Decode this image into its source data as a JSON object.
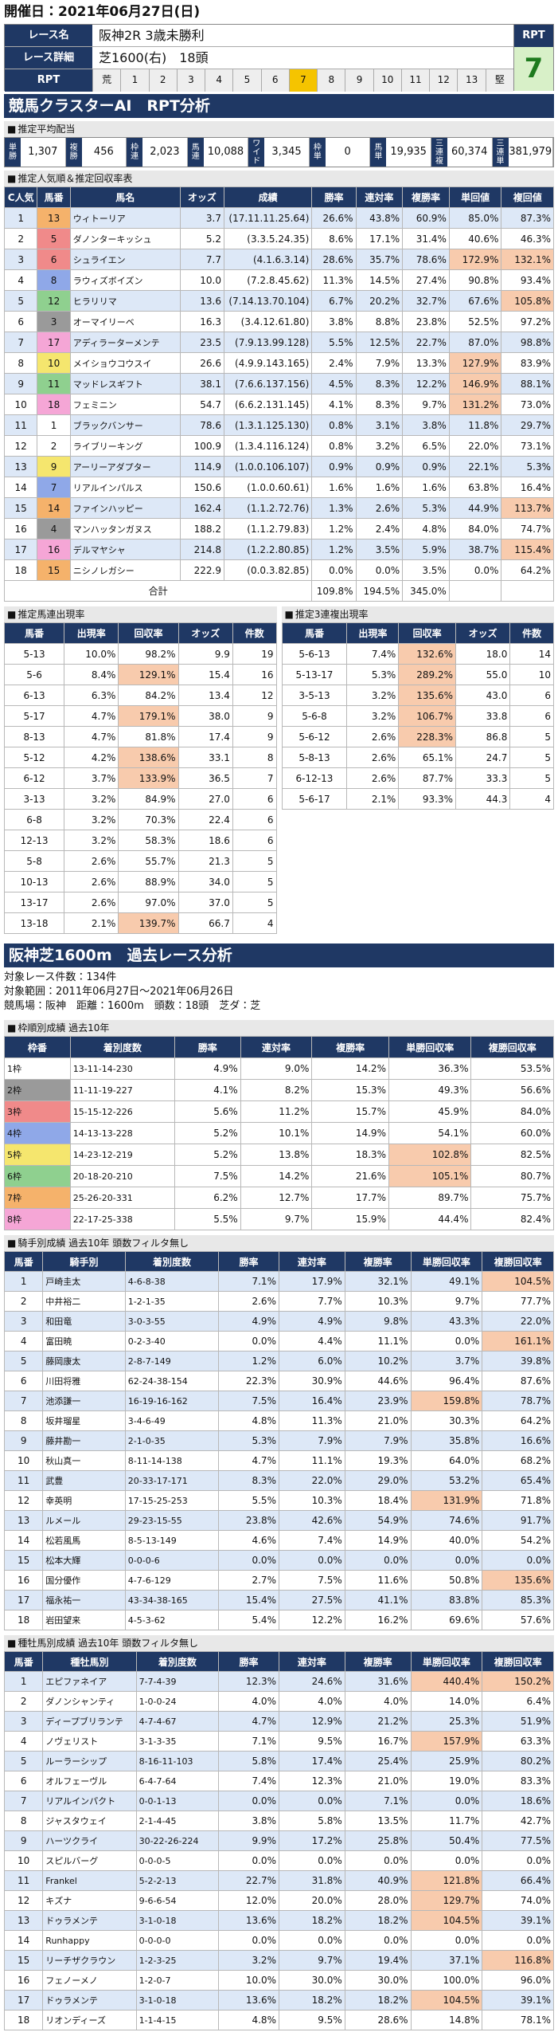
{
  "header": {
    "date": "開催日：2021年06月27日(日)"
  },
  "race": {
    "name_label": "レース名",
    "name": "阪神2R 3歳未勝利",
    "detail_label": "レース詳細",
    "detail": "芝1600(右)　18頭",
    "rpt_label": "RPT",
    "rpt_scale": [
      "荒",
      "1",
      "2",
      "3",
      "4",
      "5",
      "6",
      "7",
      "8",
      "9",
      "10",
      "11",
      "12",
      "13",
      "堅"
    ],
    "rpt_header": "RPT",
    "rpt_value": "7"
  },
  "ai_title": "競馬クラスターAI　RPT分析",
  "payout": {
    "title": "推定平均配当",
    "items": [
      {
        "label": "単勝",
        "value": "1,307"
      },
      {
        "label": "複勝",
        "value": "456"
      },
      {
        "label": "枠連",
        "value": "2,023"
      },
      {
        "label": "馬連",
        "value": "10,088"
      },
      {
        "label": "ワイド",
        "value": "3,345"
      },
      {
        "label": "枠単",
        "value": "0"
      },
      {
        "label": "馬単",
        "value": "19,935"
      },
      {
        "label": "三連複",
        "value": "60,374"
      },
      {
        "label": "三連単",
        "value": "381,979"
      }
    ]
  },
  "popularity": {
    "title": "推定人気順＆推定回収率表",
    "columns": [
      "C人気",
      "馬番",
      "馬名",
      "オッズ",
      "成績",
      "勝率",
      "連対率",
      "複勝率",
      "単回値",
      "複回値"
    ],
    "rows": [
      [
        "1",
        "13",
        "ウィトーリア",
        "3.7",
        "(17.11.11.25.64)",
        "26.6%",
        "43.8%",
        "60.9%",
        "85.0%",
        "87.3%"
      ],
      [
        "2",
        "5",
        "ダノンターキッシュ",
        "5.2",
        "(3.3.5.24.35)",
        "8.6%",
        "17.1%",
        "31.4%",
        "40.6%",
        "46.3%"
      ],
      [
        "3",
        "6",
        "シュライエン",
        "7.7",
        "(4.1.6.3.14)",
        "28.6%",
        "35.7%",
        "78.6%",
        "172.9%",
        "132.1%"
      ],
      [
        "4",
        "8",
        "ラウィズボイズン",
        "10.0",
        "(7.2.8.45.62)",
        "11.3%",
        "14.5%",
        "27.4%",
        "90.8%",
        "93.4%"
      ],
      [
        "5",
        "12",
        "ヒラリリマ",
        "13.6",
        "(7.14.13.70.104)",
        "6.7%",
        "20.2%",
        "32.7%",
        "67.6%",
        "105.8%"
      ],
      [
        "6",
        "3",
        "オーマイリーベ",
        "16.3",
        "(3.4.12.61.80)",
        "3.8%",
        "8.8%",
        "23.8%",
        "52.5%",
        "97.2%"
      ],
      [
        "7",
        "17",
        "アディラーターメンテ",
        "23.5",
        "(7.9.13.99.128)",
        "5.5%",
        "12.5%",
        "22.7%",
        "87.0%",
        "98.8%"
      ],
      [
        "8",
        "10",
        "メイショウコウスイ",
        "26.6",
        "(4.9.9.143.165)",
        "2.4%",
        "7.9%",
        "13.3%",
        "127.9%",
        "83.9%"
      ],
      [
        "9",
        "11",
        "マッドレスギフト",
        "38.1",
        "(7.6.6.137.156)",
        "4.5%",
        "8.3%",
        "12.2%",
        "146.9%",
        "88.1%"
      ],
      [
        "10",
        "18",
        "フェミニン",
        "54.7",
        "(6.6.2.131.145)",
        "4.1%",
        "8.3%",
        "9.7%",
        "131.2%",
        "73.0%"
      ],
      [
        "11",
        "1",
        "ブラックバンサー",
        "78.6",
        "(1.3.1.125.130)",
        "0.8%",
        "3.1%",
        "3.8%",
        "11.8%",
        "29.7%"
      ],
      [
        "12",
        "2",
        "ライブリーキング",
        "100.9",
        "(1.3.4.116.124)",
        "0.8%",
        "3.2%",
        "6.5%",
        "22.0%",
        "73.1%"
      ],
      [
        "13",
        "9",
        "アーリーアダプター",
        "114.9",
        "(1.0.0.106.107)",
        "0.9%",
        "0.9%",
        "0.9%",
        "22.1%",
        "5.3%"
      ],
      [
        "14",
        "7",
        "リアルインパルス",
        "150.6",
        "(1.0.0.60.61)",
        "1.6%",
        "1.6%",
        "1.6%",
        "63.8%",
        "16.4%"
      ],
      [
        "15",
        "14",
        "ファインハッピー",
        "162.4",
        "(1.1.2.72.76)",
        "1.3%",
        "2.6%",
        "5.3%",
        "44.9%",
        "113.7%"
      ],
      [
        "16",
        "4",
        "マンハッタンガヌス",
        "188.2",
        "(1.1.2.79.83)",
        "1.2%",
        "2.4%",
        "4.8%",
        "84.0%",
        "74.7%"
      ],
      [
        "17",
        "16",
        "デルマヤシャ",
        "214.8",
        "(1.2.2.80.85)",
        "1.2%",
        "3.5%",
        "5.9%",
        "38.7%",
        "115.4%"
      ],
      [
        "18",
        "15",
        "ニシノレガシー",
        "222.9",
        "(0.0.3.82.85)",
        "0.0%",
        "0.0%",
        "3.5%",
        "0.0%",
        "64.2%"
      ]
    ],
    "total": {
      "label": "合計",
      "values": [
        "109.8%",
        "194.5%",
        "345.0%"
      ]
    }
  },
  "quinella": {
    "title": "推定馬連出現率",
    "columns": [
      "馬番",
      "出現率",
      "回収率",
      "オッズ",
      "件数"
    ],
    "rows": [
      [
        "5-13",
        "10.0%",
        "98.2%",
        "9.9",
        "19"
      ],
      [
        "5-6",
        "8.4%",
        "129.1%",
        "15.4",
        "16"
      ],
      [
        "6-13",
        "6.3%",
        "84.2%",
        "13.4",
        "12"
      ],
      [
        "5-17",
        "4.7%",
        "179.1%",
        "38.0",
        "9"
      ],
      [
        "8-13",
        "4.7%",
        "81.8%",
        "17.4",
        "9"
      ],
      [
        "5-12",
        "4.2%",
        "138.6%",
        "33.1",
        "8"
      ],
      [
        "6-12",
        "3.7%",
        "133.9%",
        "36.5",
        "7"
      ],
      [
        "3-13",
        "3.2%",
        "84.9%",
        "27.0",
        "6"
      ],
      [
        "6-8",
        "3.2%",
        "70.3%",
        "22.4",
        "6"
      ],
      [
        "12-13",
        "3.2%",
        "58.3%",
        "18.6",
        "6"
      ],
      [
        "5-8",
        "2.6%",
        "55.7%",
        "21.3",
        "5"
      ],
      [
        "10-13",
        "2.6%",
        "88.9%",
        "34.0",
        "5"
      ],
      [
        "13-17",
        "2.6%",
        "97.0%",
        "37.0",
        "5"
      ],
      [
        "13-18",
        "2.1%",
        "139.7%",
        "66.7",
        "4"
      ]
    ]
  },
  "trio": {
    "title": "推定3連複出現率",
    "columns": [
      "馬番",
      "出現率",
      "回収率",
      "オッズ",
      "件数"
    ],
    "rows": [
      [
        "5-6-13",
        "7.4%",
        "132.6%",
        "18.0",
        "14"
      ],
      [
        "5-13-17",
        "5.3%",
        "289.2%",
        "55.0",
        "10"
      ],
      [
        "3-5-13",
        "3.2%",
        "135.6%",
        "43.0",
        "6"
      ],
      [
        "5-6-8",
        "3.2%",
        "106.7%",
        "33.8",
        "6"
      ],
      [
        "5-6-12",
        "2.6%",
        "228.3%",
        "86.8",
        "5"
      ],
      [
        "5-8-13",
        "2.6%",
        "65.1%",
        "24.7",
        "5"
      ],
      [
        "6-12-13",
        "2.6%",
        "87.7%",
        "33.3",
        "5"
      ],
      [
        "5-6-17",
        "2.1%",
        "93.3%",
        "44.3",
        "4"
      ]
    ]
  },
  "course": {
    "title": "阪神芝1600m　過去レース分析",
    "lines": [
      "対象レース件数：134件",
      "対象範囲：2011年06月27日～2021年06月26日",
      "競馬場：阪神　距離：1600m　頭数：18頭　芝ダ：芝"
    ]
  },
  "gate": {
    "title": "枠順別成績 過去10年",
    "columns": [
      "枠番",
      "着別度数",
      "勝率",
      "連対率",
      "複勝率",
      "単勝回収率",
      "複勝回収率"
    ],
    "rows": [
      [
        "1枠",
        "13-11-14-230",
        "4.9%",
        "9.0%",
        "14.2%",
        "36.3%",
        "53.5%"
      ],
      [
        "2枠",
        "11-11-19-227",
        "4.1%",
        "8.2%",
        "15.3%",
        "49.3%",
        "56.6%"
      ],
      [
        "3枠",
        "15-15-12-226",
        "5.6%",
        "11.2%",
        "15.7%",
        "45.9%",
        "84.0%"
      ],
      [
        "4枠",
        "14-13-13-228",
        "5.2%",
        "10.1%",
        "14.9%",
        "54.1%",
        "60.0%"
      ],
      [
        "5枠",
        "14-23-12-219",
        "5.2%",
        "13.8%",
        "18.3%",
        "102.8%",
        "82.5%"
      ],
      [
        "6枠",
        "20-18-20-210",
        "7.5%",
        "14.2%",
        "21.6%",
        "105.1%",
        "80.7%"
      ],
      [
        "7枠",
        "25-26-20-331",
        "6.2%",
        "12.7%",
        "17.7%",
        "89.7%",
        "75.7%"
      ],
      [
        "8枠",
        "22-17-25-338",
        "5.5%",
        "9.7%",
        "15.9%",
        "44.4%",
        "82.4%"
      ]
    ]
  },
  "jockey": {
    "title": "騎手別成績 過去10年 頭数フィルタ無し",
    "columns": [
      "馬番",
      "騎手別",
      "着別度数",
      "勝率",
      "連対率",
      "複勝率",
      "単勝回収率",
      "複勝回収率"
    ],
    "rows": [
      [
        "1",
        "戸崎圭太",
        "4-6-8-38",
        "7.1%",
        "17.9%",
        "32.1%",
        "49.1%",
        "104.5%"
      ],
      [
        "2",
        "中井裕二",
        "1-2-1-35",
        "2.6%",
        "7.7%",
        "10.3%",
        "9.7%",
        "77.7%"
      ],
      [
        "3",
        "和田竜",
        "3-0-3-55",
        "4.9%",
        "4.9%",
        "9.8%",
        "43.3%",
        "22.0%"
      ],
      [
        "4",
        "富田暁",
        "0-2-3-40",
        "0.0%",
        "4.4%",
        "11.1%",
        "0.0%",
        "161.1%"
      ],
      [
        "5",
        "藤岡康太",
        "2-8-7-149",
        "1.2%",
        "6.0%",
        "10.2%",
        "3.7%",
        "39.8%"
      ],
      [
        "6",
        "川田将雅",
        "62-24-38-154",
        "22.3%",
        "30.9%",
        "44.6%",
        "96.4%",
        "87.6%"
      ],
      [
        "7",
        "池添謙一",
        "16-19-16-162",
        "7.5%",
        "16.4%",
        "23.9%",
        "159.8%",
        "78.7%"
      ],
      [
        "8",
        "坂井瑠星",
        "3-4-6-49",
        "4.8%",
        "11.3%",
        "21.0%",
        "30.3%",
        "64.2%"
      ],
      [
        "9",
        "藤井勘一",
        "2-1-0-35",
        "5.3%",
        "7.9%",
        "7.9%",
        "35.8%",
        "16.6%"
      ],
      [
        "10",
        "秋山真一",
        "8-11-14-138",
        "4.7%",
        "11.1%",
        "19.3%",
        "64.0%",
        "68.2%"
      ],
      [
        "11",
        "武豊",
        "20-33-17-171",
        "8.3%",
        "22.0%",
        "29.0%",
        "53.2%",
        "65.4%"
      ],
      [
        "12",
        "幸英明",
        "17-15-25-253",
        "5.5%",
        "10.3%",
        "18.4%",
        "131.9%",
        "71.8%"
      ],
      [
        "13",
        "ルメール",
        "29-23-15-55",
        "23.8%",
        "42.6%",
        "54.9%",
        "74.6%",
        "91.7%"
      ],
      [
        "14",
        "松若風馬",
        "8-5-13-149",
        "4.6%",
        "7.4%",
        "14.9%",
        "40.0%",
        "54.2%"
      ],
      [
        "15",
        "松本大輝",
        "0-0-0-6",
        "0.0%",
        "0.0%",
        "0.0%",
        "0.0%",
        "0.0%"
      ],
      [
        "16",
        "国分優作",
        "4-7-6-129",
        "2.7%",
        "7.5%",
        "11.6%",
        "50.8%",
        "135.6%"
      ],
      [
        "17",
        "福永祐一",
        "43-34-38-165",
        "15.4%",
        "27.5%",
        "41.1%",
        "83.8%",
        "85.3%"
      ],
      [
        "18",
        "岩田望来",
        "4-5-3-62",
        "5.4%",
        "12.2%",
        "16.2%",
        "69.6%",
        "57.6%"
      ]
    ]
  },
  "sire": {
    "title": "種牡馬別成績 過去10年 頭数フィルタ無し",
    "columns": [
      "馬番",
      "種牡馬別",
      "着別度数",
      "勝率",
      "連対率",
      "複勝率",
      "単勝回収率",
      "複勝回収率"
    ],
    "rows": [
      [
        "1",
        "エピファネイア",
        "7-7-4-39",
        "12.3%",
        "24.6%",
        "31.6%",
        "440.4%",
        "150.2%"
      ],
      [
        "2",
        "ダノンシャンティ",
        "1-0-0-24",
        "4.0%",
        "4.0%",
        "4.0%",
        "14.0%",
        "6.4%"
      ],
      [
        "3",
        "ディープブリランテ",
        "4-7-4-67",
        "4.7%",
        "12.9%",
        "21.2%",
        "25.3%",
        "51.9%"
      ],
      [
        "4",
        "ノヴェリスト",
        "3-1-3-35",
        "7.1%",
        "9.5%",
        "16.7%",
        "157.9%",
        "63.3%"
      ],
      [
        "5",
        "ルーラーシップ",
        "8-16-11-103",
        "5.8%",
        "17.4%",
        "25.4%",
        "25.9%",
        "80.2%"
      ],
      [
        "6",
        "オルフェーヴル",
        "6-4-7-64",
        "7.4%",
        "12.3%",
        "21.0%",
        "19.0%",
        "83.3%"
      ],
      [
        "7",
        "リアルインパクト",
        "0-0-1-13",
        "0.0%",
        "0.0%",
        "7.1%",
        "0.0%",
        "18.6%"
      ],
      [
        "8",
        "ジャスタウェイ",
        "2-1-4-45",
        "3.8%",
        "5.8%",
        "13.5%",
        "11.7%",
        "42.7%"
      ],
      [
        "9",
        "ハーツクライ",
        "30-22-26-224",
        "9.9%",
        "17.2%",
        "25.8%",
        "50.4%",
        "77.5%"
      ],
      [
        "10",
        "スピルバーグ",
        "0-0-0-5",
        "0.0%",
        "0.0%",
        "0.0%",
        "0.0%",
        "0.0%"
      ],
      [
        "11",
        "Frankel",
        "5-2-2-13",
        "22.7%",
        "31.8%",
        "40.9%",
        "121.8%",
        "66.4%"
      ],
      [
        "12",
        "キズナ",
        "9-6-6-54",
        "12.0%",
        "20.0%",
        "28.0%",
        "129.7%",
        "74.0%"
      ],
      [
        "13",
        "ドゥラメンテ",
        "3-1-0-18",
        "13.6%",
        "18.2%",
        "18.2%",
        "104.5%",
        "39.1%"
      ],
      [
        "14",
        "Runhappy",
        "0-0-0-0",
        "0.0%",
        "0.0%",
        "0.0%",
        "0.0%",
        "0.0%"
      ],
      [
        "15",
        "リーチザクラウン",
        "1-2-3-25",
        "3.2%",
        "9.7%",
        "19.4%",
        "37.1%",
        "116.8%"
      ],
      [
        "16",
        "フェノーメノ",
        "1-2-0-7",
        "10.0%",
        "30.0%",
        "30.0%",
        "100.0%",
        "96.0%"
      ],
      [
        "17",
        "ドゥラメンテ",
        "3-1-0-18",
        "13.6%",
        "18.2%",
        "18.2%",
        "104.5%",
        "39.1%"
      ],
      [
        "18",
        "リオンディーズ",
        "1-1-4-15",
        "4.8%",
        "9.5%",
        "28.6%",
        "14.8%",
        "78.1%"
      ]
    ]
  }
}
